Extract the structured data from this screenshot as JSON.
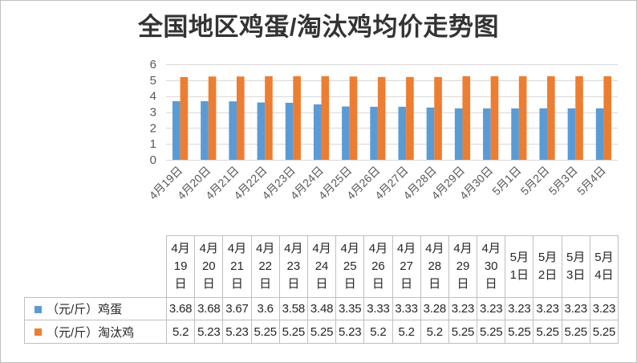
{
  "chart_data": {
    "type": "bar",
    "title": "全国地区鸡蛋/淘汰鸡均价走势图",
    "categories": [
      "4月19日",
      "4月20日",
      "4月21日",
      "4月22日",
      "4月23日",
      "4月24日",
      "4月25日",
      "4月26日",
      "4月27日",
      "4月28日",
      "4月29日",
      "4月30日",
      "5月1日",
      "5月2日",
      "5月3日",
      "5月4日"
    ],
    "series": [
      {
        "name": "（元/斤）鸡蛋",
        "color": "#5B9BD5",
        "values": [
          3.68,
          3.68,
          3.67,
          3.6,
          3.58,
          3.48,
          3.35,
          3.33,
          3.33,
          3.28,
          3.23,
          3.23,
          3.23,
          3.23,
          3.23,
          3.23
        ]
      },
      {
        "name": "（元/斤）淘汰鸡",
        "color": "#ED7D31",
        "values": [
          5.2,
          5.23,
          5.23,
          5.25,
          5.25,
          5.25,
          5.23,
          5.2,
          5.2,
          5.2,
          5.25,
          5.25,
          5.25,
          5.25,
          5.25,
          5.25
        ]
      }
    ],
    "xlabel": "",
    "ylabel": "",
    "ylim": [
      0,
      6
    ],
    "yticks": [
      0,
      1,
      2,
      3,
      4,
      5,
      6
    ],
    "grid": true,
    "legend": "bottom",
    "data_table": true
  }
}
